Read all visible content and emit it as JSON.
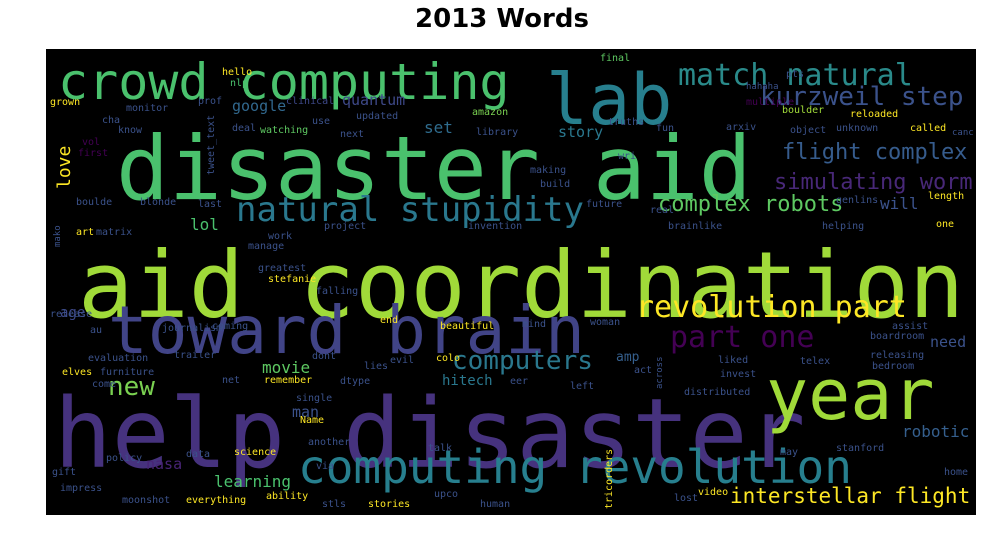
{
  "title": "2013 Words",
  "palette": {
    "background": "#000000",
    "yellow": "#fde725",
    "lime": "#a0da39",
    "green": "#4ac16d",
    "teal": "#1fa187",
    "cyan": "#277f8e",
    "blue": "#365c8d",
    "indigo": "#46327e",
    "purple": "#440154"
  },
  "words": [
    {
      "text": "aid coordination",
      "color": "#a0da39"
    },
    {
      "text": "help disaster",
      "color": "#46327e"
    },
    {
      "text": "disaster aid",
      "color": "#4ac16d"
    },
    {
      "text": "toward brain",
      "color": "#414487"
    },
    {
      "text": "year",
      "color": "#a0da39"
    },
    {
      "text": "lab",
      "color": "#277f8e"
    },
    {
      "text": "crowd computing",
      "color": "#4ac16d"
    },
    {
      "text": "computing revolution",
      "color": "#277f8e"
    },
    {
      "text": "natural stupidity",
      "color": "#2a788e"
    },
    {
      "text": "match natural",
      "color": "#2a8a8a"
    },
    {
      "text": "kurzweil step",
      "color": "#3b528b"
    },
    {
      "text": "revolution part",
      "color": "#fde725"
    },
    {
      "text": "part one",
      "color": "#440154"
    },
    {
      "text": "flight complex",
      "color": "#365c8d"
    },
    {
      "text": "simulating worm",
      "color": "#482878"
    },
    {
      "text": "complex robots",
      "color": "#5ec962"
    },
    {
      "text": "interstellar flight",
      "color": "#fde725"
    },
    {
      "text": "computers",
      "color": "#2a788e"
    },
    {
      "text": "new",
      "color": "#7ad151"
    },
    {
      "text": "love",
      "color": "#fde725"
    },
    {
      "text": "robotic",
      "color": "#355f8d"
    },
    {
      "text": "movie",
      "color": "#5ec962"
    },
    {
      "text": "learning",
      "color": "#4ac16d"
    },
    {
      "text": "man",
      "color": "#3b528b"
    },
    {
      "text": "hitech",
      "color": "#2a788e"
    },
    {
      "text": "google",
      "color": "#31688e"
    },
    {
      "text": "quantum",
      "color": "#3e4989"
    },
    {
      "text": "story",
      "color": "#2a788e"
    },
    {
      "text": "set",
      "color": "#2f6c8e"
    },
    {
      "text": "lol",
      "color": "#4ac16d"
    },
    {
      "text": "will",
      "color": "#3b528b"
    },
    {
      "text": "need",
      "color": "#3b528b"
    },
    {
      "text": "nasa",
      "color": "#482475"
    },
    {
      "text": "amp",
      "color": "#355f8d"
    },
    {
      "text": "age",
      "color": "#3e4989"
    },
    {
      "text": "hello",
      "color": "#fde725"
    },
    {
      "text": "nlp",
      "color": "#4ac16d"
    },
    {
      "text": "prof",
      "color": "#3b528b"
    },
    {
      "text": "clinical",
      "color": "#3e4989"
    },
    {
      "text": "amazon",
      "color": "#7ad151"
    },
    {
      "text": "final",
      "color": "#5ec962"
    },
    {
      "text": "pts",
      "color": "#3b528b"
    },
    {
      "text": "hahaha",
      "color": "#3b528b"
    },
    {
      "text": "multiple",
      "color": "#440154"
    },
    {
      "text": "boulder",
      "color": "#a0da39"
    },
    {
      "text": "reloaded",
      "color": "#fde725"
    },
    {
      "text": "grown",
      "color": "#fde725"
    },
    {
      "text": "monitor",
      "color": "#3b528b"
    },
    {
      "text": "cha",
      "color": "#3b528b"
    },
    {
      "text": "know",
      "color": "#3b528b"
    },
    {
      "text": "vol",
      "color": "#440154"
    },
    {
      "text": "first",
      "color": "#440154"
    },
    {
      "text": "watching",
      "color": "#5ec962"
    },
    {
      "text": "deal",
      "color": "#3b528b"
    },
    {
      "text": "use",
      "color": "#3b528b"
    },
    {
      "text": "updated",
      "color": "#3b528b"
    },
    {
      "text": "next",
      "color": "#3b528b"
    },
    {
      "text": "library",
      "color": "#3b528b"
    },
    {
      "text": "truths",
      "color": "#3b528b"
    },
    {
      "text": "fun",
      "color": "#3b528b"
    },
    {
      "text": "arxiv",
      "color": "#3b528b"
    },
    {
      "text": "object",
      "color": "#3b528b"
    },
    {
      "text": "unknown",
      "color": "#3b528b"
    },
    {
      "text": "called",
      "color": "#fde725"
    },
    {
      "text": "canc",
      "color": "#3b528b"
    },
    {
      "text": "tweet_text",
      "color": "#3b528b"
    },
    {
      "text": "wri",
      "color": "#3b528b"
    },
    {
      "text": "making",
      "color": "#3b528b"
    },
    {
      "text": "build",
      "color": "#3b528b"
    },
    {
      "text": "boulde",
      "color": "#3b528b"
    },
    {
      "text": "blonde",
      "color": "#3b528b"
    },
    {
      "text": "last",
      "color": "#3b528b"
    },
    {
      "text": "future",
      "color": "#3b528b"
    },
    {
      "text": "real",
      "color": "#3b528b"
    },
    {
      "text": "genlins",
      "color": "#3b528b"
    },
    {
      "text": "length",
      "color": "#fde725"
    },
    {
      "text": "art",
      "color": "#fde725"
    },
    {
      "text": "matrix",
      "color": "#3b528b"
    },
    {
      "text": "project",
      "color": "#3b528b"
    },
    {
      "text": "invention",
      "color": "#3b528b"
    },
    {
      "text": "brainlike",
      "color": "#3b528b"
    },
    {
      "text": "helping",
      "color": "#3b528b"
    },
    {
      "text": "one",
      "color": "#fde725"
    },
    {
      "text": "mako",
      "color": "#3b528b"
    },
    {
      "text": "work",
      "color": "#3b528b"
    },
    {
      "text": "manage",
      "color": "#3b528b"
    },
    {
      "text": "greatest",
      "color": "#3b528b"
    },
    {
      "text": "stefanie",
      "color": "#fde725"
    },
    {
      "text": "falling",
      "color": "#3b528b"
    },
    {
      "text": "release",
      "color": "#3b528b"
    },
    {
      "text": "journalism",
      "color": "#3b528b"
    },
    {
      "text": "coming",
      "color": "#3b528b"
    },
    {
      "text": "beautiful",
      "color": "#fde725"
    },
    {
      "text": "mind",
      "color": "#3b528b"
    },
    {
      "text": "woman",
      "color": "#3b528b"
    },
    {
      "text": "assist",
      "color": "#3b528b"
    },
    {
      "text": "boardroom",
      "color": "#3b528b"
    },
    {
      "text": "end",
      "color": "#fde725"
    },
    {
      "text": "au",
      "color": "#3b528b"
    },
    {
      "text": "evaluation",
      "color": "#3b528b"
    },
    {
      "text": "trailer",
      "color": "#3b528b"
    },
    {
      "text": "dont",
      "color": "#3b528b"
    },
    {
      "text": "lies",
      "color": "#3b528b"
    },
    {
      "text": "evil",
      "color": "#3b528b"
    },
    {
      "text": "colo",
      "color": "#fde725"
    },
    {
      "text": "liked",
      "color": "#3b528b"
    },
    {
      "text": "telex",
      "color": "#3b528b"
    },
    {
      "text": "releasing",
      "color": "#3b528b"
    },
    {
      "text": "bedroom",
      "color": "#3b528b"
    },
    {
      "text": "act",
      "color": "#3b528b"
    },
    {
      "text": "invest",
      "color": "#3b528b"
    },
    {
      "text": "elves",
      "color": "#fde725"
    },
    {
      "text": "furniture",
      "color": "#3b528b"
    },
    {
      "text": "come",
      "color": "#3b528b"
    },
    {
      "text": "net",
      "color": "#3b528b"
    },
    {
      "text": "remember",
      "color": "#fde725"
    },
    {
      "text": "dtype",
      "color": "#3b528b"
    },
    {
      "text": "eer",
      "color": "#3b528b"
    },
    {
      "text": "left",
      "color": "#3b528b"
    },
    {
      "text": "distributed",
      "color": "#3b528b"
    },
    {
      "text": "across",
      "color": "#3b528b"
    },
    {
      "text": "single",
      "color": "#3b528b"
    },
    {
      "text": "Name",
      "color": "#fde725"
    },
    {
      "text": "another",
      "color": "#3b528b"
    },
    {
      "text": "talk",
      "color": "#3b528b"
    },
    {
      "text": "may",
      "color": "#3b528b"
    },
    {
      "text": "stanford",
      "color": "#3b528b"
    },
    {
      "text": "policy",
      "color": "#3b528b"
    },
    {
      "text": "data",
      "color": "#3b528b"
    },
    {
      "text": "science",
      "color": "#fde725"
    },
    {
      "text": "gift",
      "color": "#3b528b"
    },
    {
      "text": "impress",
      "color": "#3b528b"
    },
    {
      "text": "via",
      "color": "#3b528b"
    },
    {
      "text": "home",
      "color": "#3b528b"
    },
    {
      "text": "moonshot",
      "color": "#3b528b"
    },
    {
      "text": "everything",
      "color": "#fde725"
    },
    {
      "text": "ability",
      "color": "#fde725"
    },
    {
      "text": "stls",
      "color": "#3b528b"
    },
    {
      "text": "stories",
      "color": "#fde725"
    },
    {
      "text": "upco",
      "color": "#3b528b"
    },
    {
      "text": "human",
      "color": "#3b528b"
    },
    {
      "text": "tricorders",
      "color": "#fde725"
    },
    {
      "text": "lost",
      "color": "#3b528b"
    },
    {
      "text": "video",
      "color": "#fde725"
    }
  ]
}
